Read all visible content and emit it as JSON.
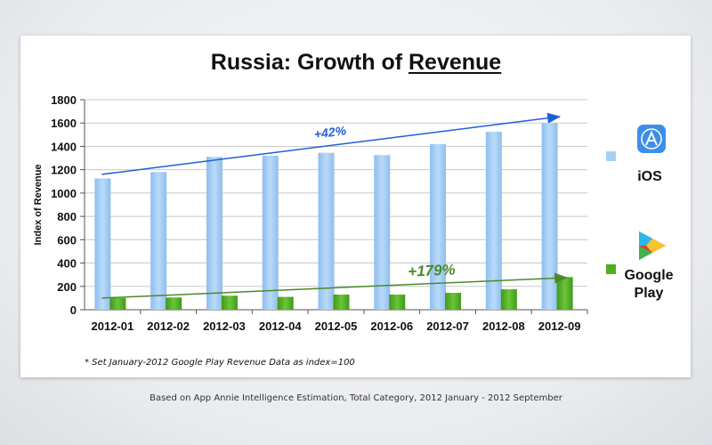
{
  "title": {
    "prefix": "Russia: Growth of ",
    "underlined": "Revenue"
  },
  "footnote": "* Set January-2012 Google Play Revenue Data as index=100",
  "source": "Based on App Annie Intelligence Estimation, Total Category, 2012 January - 2012 September",
  "colors": {
    "ios": "#a9d0f3",
    "google": "#4caf1f",
    "ios_arrow": "#1f5fd6",
    "google_arrow": "#4a8a2a"
  },
  "legend": {
    "ios_label": "iOS",
    "google_label": "Google Play",
    "ios_icon": "app-store-icon",
    "google_icon": "google-play-icon"
  },
  "chart_data": {
    "type": "bar",
    "title": "Russia: Growth of Revenue",
    "ylabel": "Index of Revenue",
    "xlabel": "",
    "ylim": [
      0,
      1800
    ],
    "yticks": [
      0,
      200,
      400,
      600,
      800,
      1000,
      1200,
      1400,
      1600,
      1800
    ],
    "grid": true,
    "categories": [
      "2012-01",
      "2012-02",
      "2012-03",
      "2012-04",
      "2012-05",
      "2012-06",
      "2012-07",
      "2012-08",
      "2012-09"
    ],
    "series": [
      {
        "name": "iOS",
        "values": [
          1125,
          1180,
          1310,
          1320,
          1345,
          1325,
          1420,
          1525,
          1600
        ]
      },
      {
        "name": "Google Play",
        "values": [
          100,
          105,
          120,
          110,
          130,
          130,
          145,
          175,
          280
        ]
      }
    ],
    "annotations": [
      {
        "text": "+42%",
        "series": "iOS",
        "from": {
          "category": "2012-01",
          "value": 1160
        },
        "to": {
          "category": "2012-09",
          "value": 1655
        }
      },
      {
        "text": "+179%",
        "series": "Google Play",
        "from": {
          "category": "2012-01",
          "value": 100
        },
        "to": {
          "category": "2012-09",
          "value": 275
        }
      }
    ]
  }
}
